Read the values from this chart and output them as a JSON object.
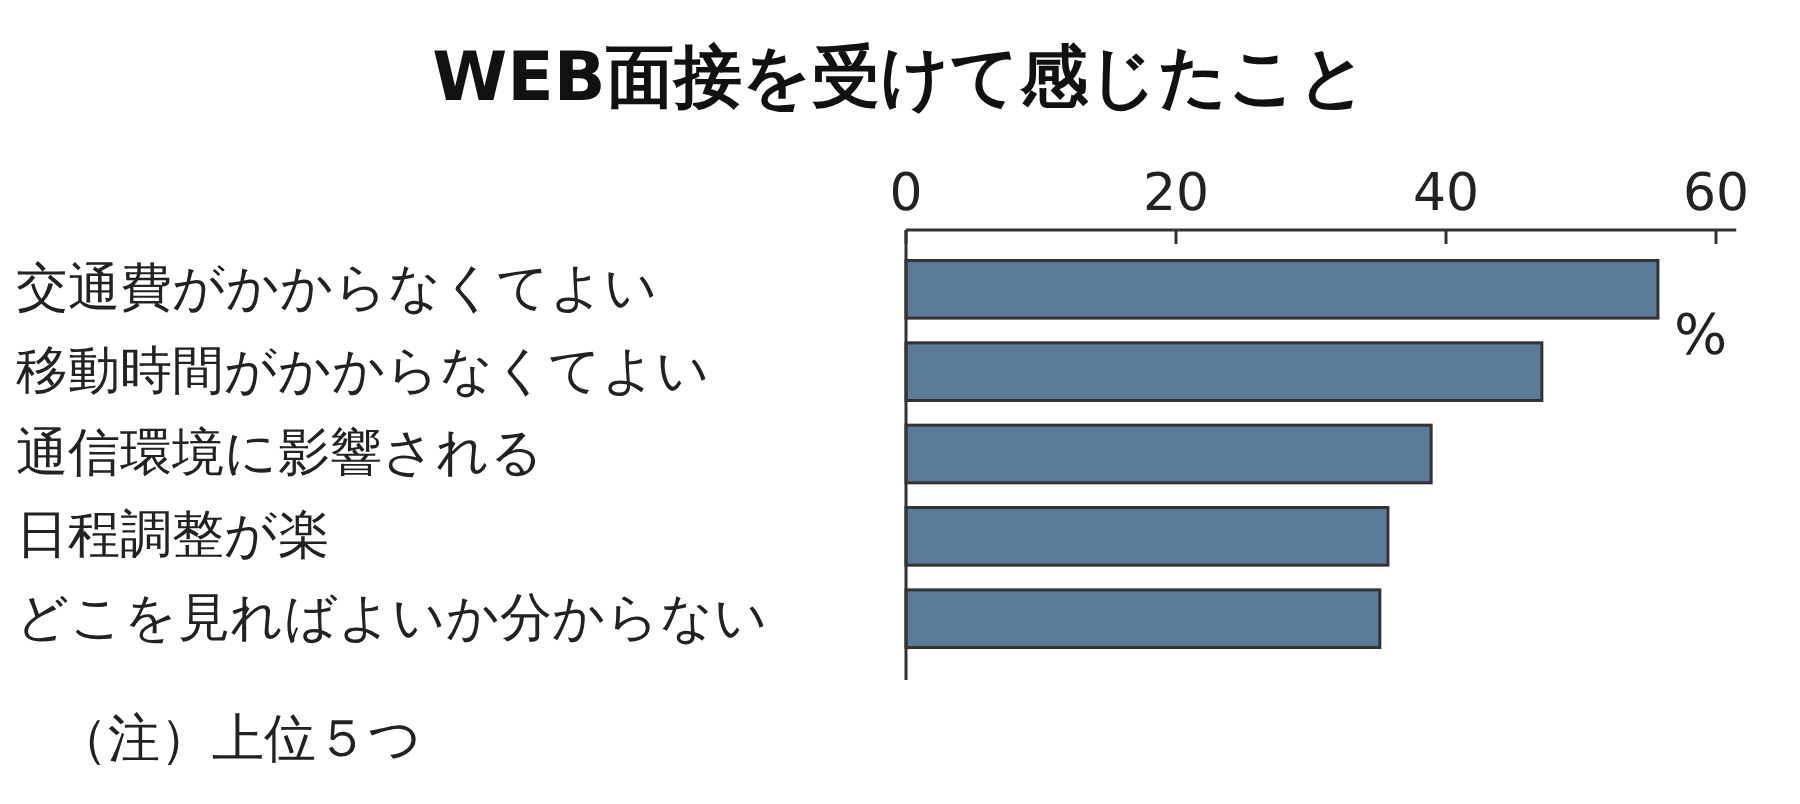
{
  "chart_data": {
    "type": "bar",
    "orientation": "horizontal",
    "title": "WEB面接を受けて感じたこと",
    "xlabel": "%",
    "categories": [
      "交通費がかからなくてよい",
      "移動時間がかからなくてよい",
      "通信環境に影響される",
      "日程調整が楽",
      "どこを見ればよいか分からない"
    ],
    "values": [
      55.7,
      47.1,
      38.9,
      35.7,
      35.1
    ],
    "color": "#5b7a98",
    "xlim": [
      0,
      61.5
    ],
    "xticks": [
      0,
      20,
      40,
      60
    ],
    "grid": false,
    "annotations": [
      "（注）上位５つ"
    ]
  }
}
